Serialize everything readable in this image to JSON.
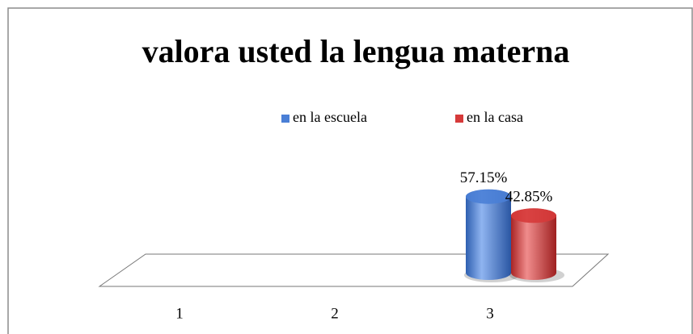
{
  "chart_data": {
    "type": "bar3d-cylinder",
    "title": "valora usted la lengua materna",
    "categories": [
      "1",
      "2",
      "3"
    ],
    "series": [
      {
        "name": "en la escuela",
        "color": "#4a7fd6",
        "values": [
          null,
          null,
          57.15
        ],
        "value_labels": [
          null,
          null,
          "57.15%"
        ]
      },
      {
        "name": "en la casa",
        "color": "#d63a3a",
        "values": [
          null,
          null,
          42.85
        ],
        "value_labels": [
          null,
          null,
          "42.85%"
        ]
      }
    ],
    "legend": "top"
  }
}
